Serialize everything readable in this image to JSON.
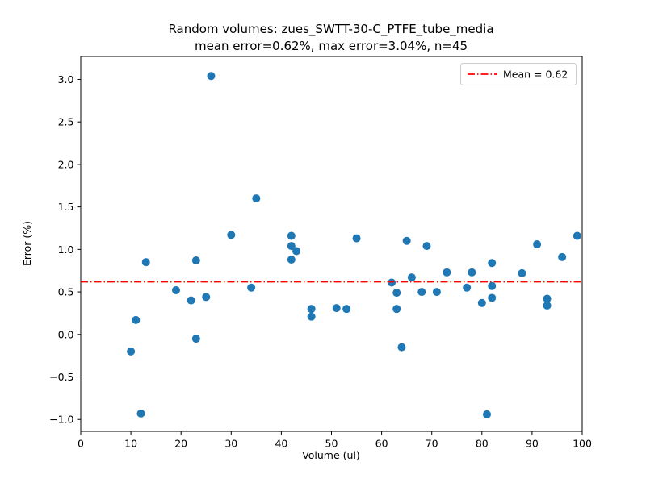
{
  "chart_data": {
    "type": "scatter",
    "title": "Random volumes: zues_SWTT-30-C_PTFE_tube_media",
    "subtitle": "mean error=0.62%, max error=3.04%, n=45",
    "xlabel": "Volume (ul)",
    "ylabel": "Error (%)",
    "xlim": [
      0,
      100
    ],
    "ylim": [
      -1.14,
      3.27
    ],
    "xticks": [
      0,
      10,
      20,
      30,
      40,
      50,
      60,
      70,
      80,
      90,
      100
    ],
    "xtick_labels": [
      "0",
      "10",
      "20",
      "30",
      "40",
      "50",
      "60",
      "70",
      "80",
      "90",
      "100"
    ],
    "yticks": [
      -1.0,
      -0.5,
      0.0,
      0.5,
      1.0,
      1.5,
      2.0,
      2.5,
      3.0
    ],
    "ytick_labels": [
      "−1.0",
      "−0.5",
      "0.0",
      "0.5",
      "1.0",
      "1.5",
      "2.0",
      "2.5",
      "3.0"
    ],
    "grid": false,
    "n": 45,
    "spine_color": "#000000",
    "marker": {
      "shape": "circle",
      "color": "#1f77b4",
      "radius_px": 5
    },
    "mean_line": {
      "y": 0.62,
      "color": "#ff0000",
      "linestyle": "dashdot",
      "label": "Mean = 0.62"
    },
    "legend_position": "upper right",
    "points": [
      [
        10,
        -0.2
      ],
      [
        11,
        0.17
      ],
      [
        12,
        -0.93
      ],
      [
        13,
        0.85
      ],
      [
        19,
        0.52
      ],
      [
        22,
        0.4
      ],
      [
        23,
        0.87
      ],
      [
        23,
        -0.05
      ],
      [
        25,
        0.44
      ],
      [
        26,
        3.04
      ],
      [
        30,
        1.17
      ],
      [
        34,
        0.55
      ],
      [
        35,
        1.6
      ],
      [
        42,
        1.16
      ],
      [
        42,
        1.04
      ],
      [
        42,
        0.88
      ],
      [
        43,
        0.98
      ],
      [
        46,
        0.3
      ],
      [
        46,
        0.21
      ],
      [
        51,
        0.31
      ],
      [
        53,
        0.3
      ],
      [
        55,
        1.13
      ],
      [
        62,
        0.61
      ],
      [
        63,
        0.49
      ],
      [
        63,
        0.3
      ],
      [
        64,
        -0.15
      ],
      [
        65,
        1.1
      ],
      [
        66,
        0.67
      ],
      [
        68,
        0.5
      ],
      [
        69,
        1.04
      ],
      [
        71,
        0.5
      ],
      [
        73,
        0.73
      ],
      [
        77,
        0.55
      ],
      [
        78,
        0.73
      ],
      [
        80,
        0.37
      ],
      [
        81,
        -0.94
      ],
      [
        82,
        0.84
      ],
      [
        82,
        0.57
      ],
      [
        82,
        0.43
      ],
      [
        88,
        0.72
      ],
      [
        91,
        1.06
      ],
      [
        93,
        0.42
      ],
      [
        93,
        0.34
      ],
      [
        96,
        0.91
      ],
      [
        99,
        1.16
      ]
    ]
  }
}
